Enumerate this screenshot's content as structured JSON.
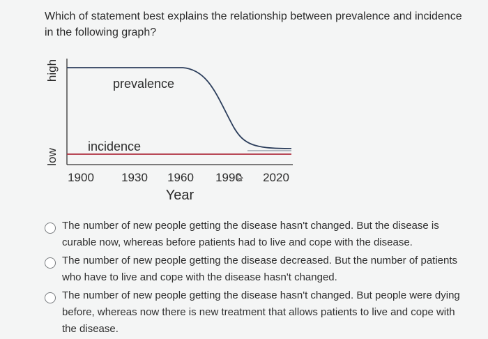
{
  "question": {
    "text": "Which of statement best explains the relationship between prevalence and incidence in the following graph?"
  },
  "chart_data": {
    "type": "line",
    "xlabel": "Year",
    "ylabel_high": "high",
    "ylabel_low": "low",
    "x_ticks": [
      "1900",
      "1930",
      "1960",
      "1990",
      "2020"
    ],
    "series": [
      {
        "name": "prevalence",
        "color": "#2c3e5c"
      },
      {
        "name": "incidence",
        "color": "#b03040"
      }
    ]
  },
  "options": [
    {
      "text": "The number of new people getting the disease hasn't changed. But the disease is curable now, whereas before patients had to live and cope with the disease."
    },
    {
      "text": "The number of new people getting the disease decreased. But the number of patients who have to live and cope with the disease hasn't changed."
    },
    {
      "text": "The number of new people getting the disease hasn't changed. But people were dying before, whereas now there is new treatment that allows patients to live and cope with the disease."
    }
  ]
}
